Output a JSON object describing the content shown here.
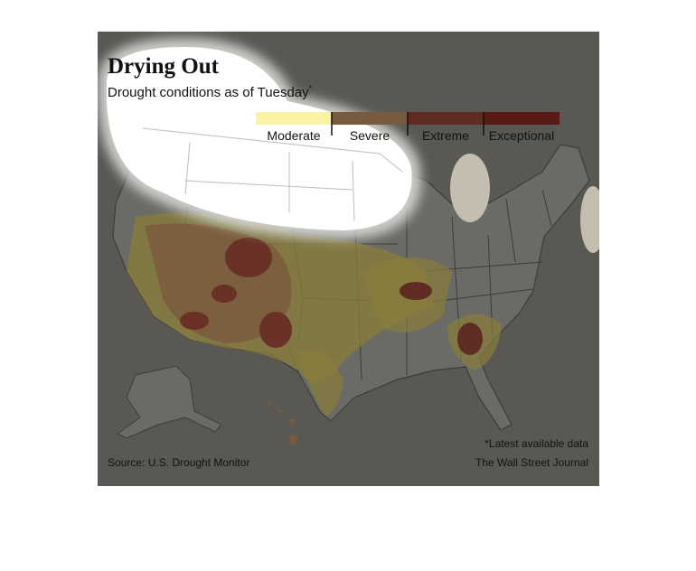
{
  "title": "Drying Out",
  "subtitle": "Drought conditions as of Tuesday",
  "subtitle_mark": "*",
  "legend": [
    {
      "label": "Moderate",
      "color": "#fbf3a4"
    },
    {
      "label": "Severe",
      "color": "#7a5a3e"
    },
    {
      "label": "Extreme",
      "color": "#5e2c22"
    },
    {
      "label": "Exceptional",
      "color": "#571a15"
    }
  ],
  "footnote": "*Latest available data",
  "source": "Source: U.S. Drought Monitor",
  "credit": "The Wall Street Journal"
}
